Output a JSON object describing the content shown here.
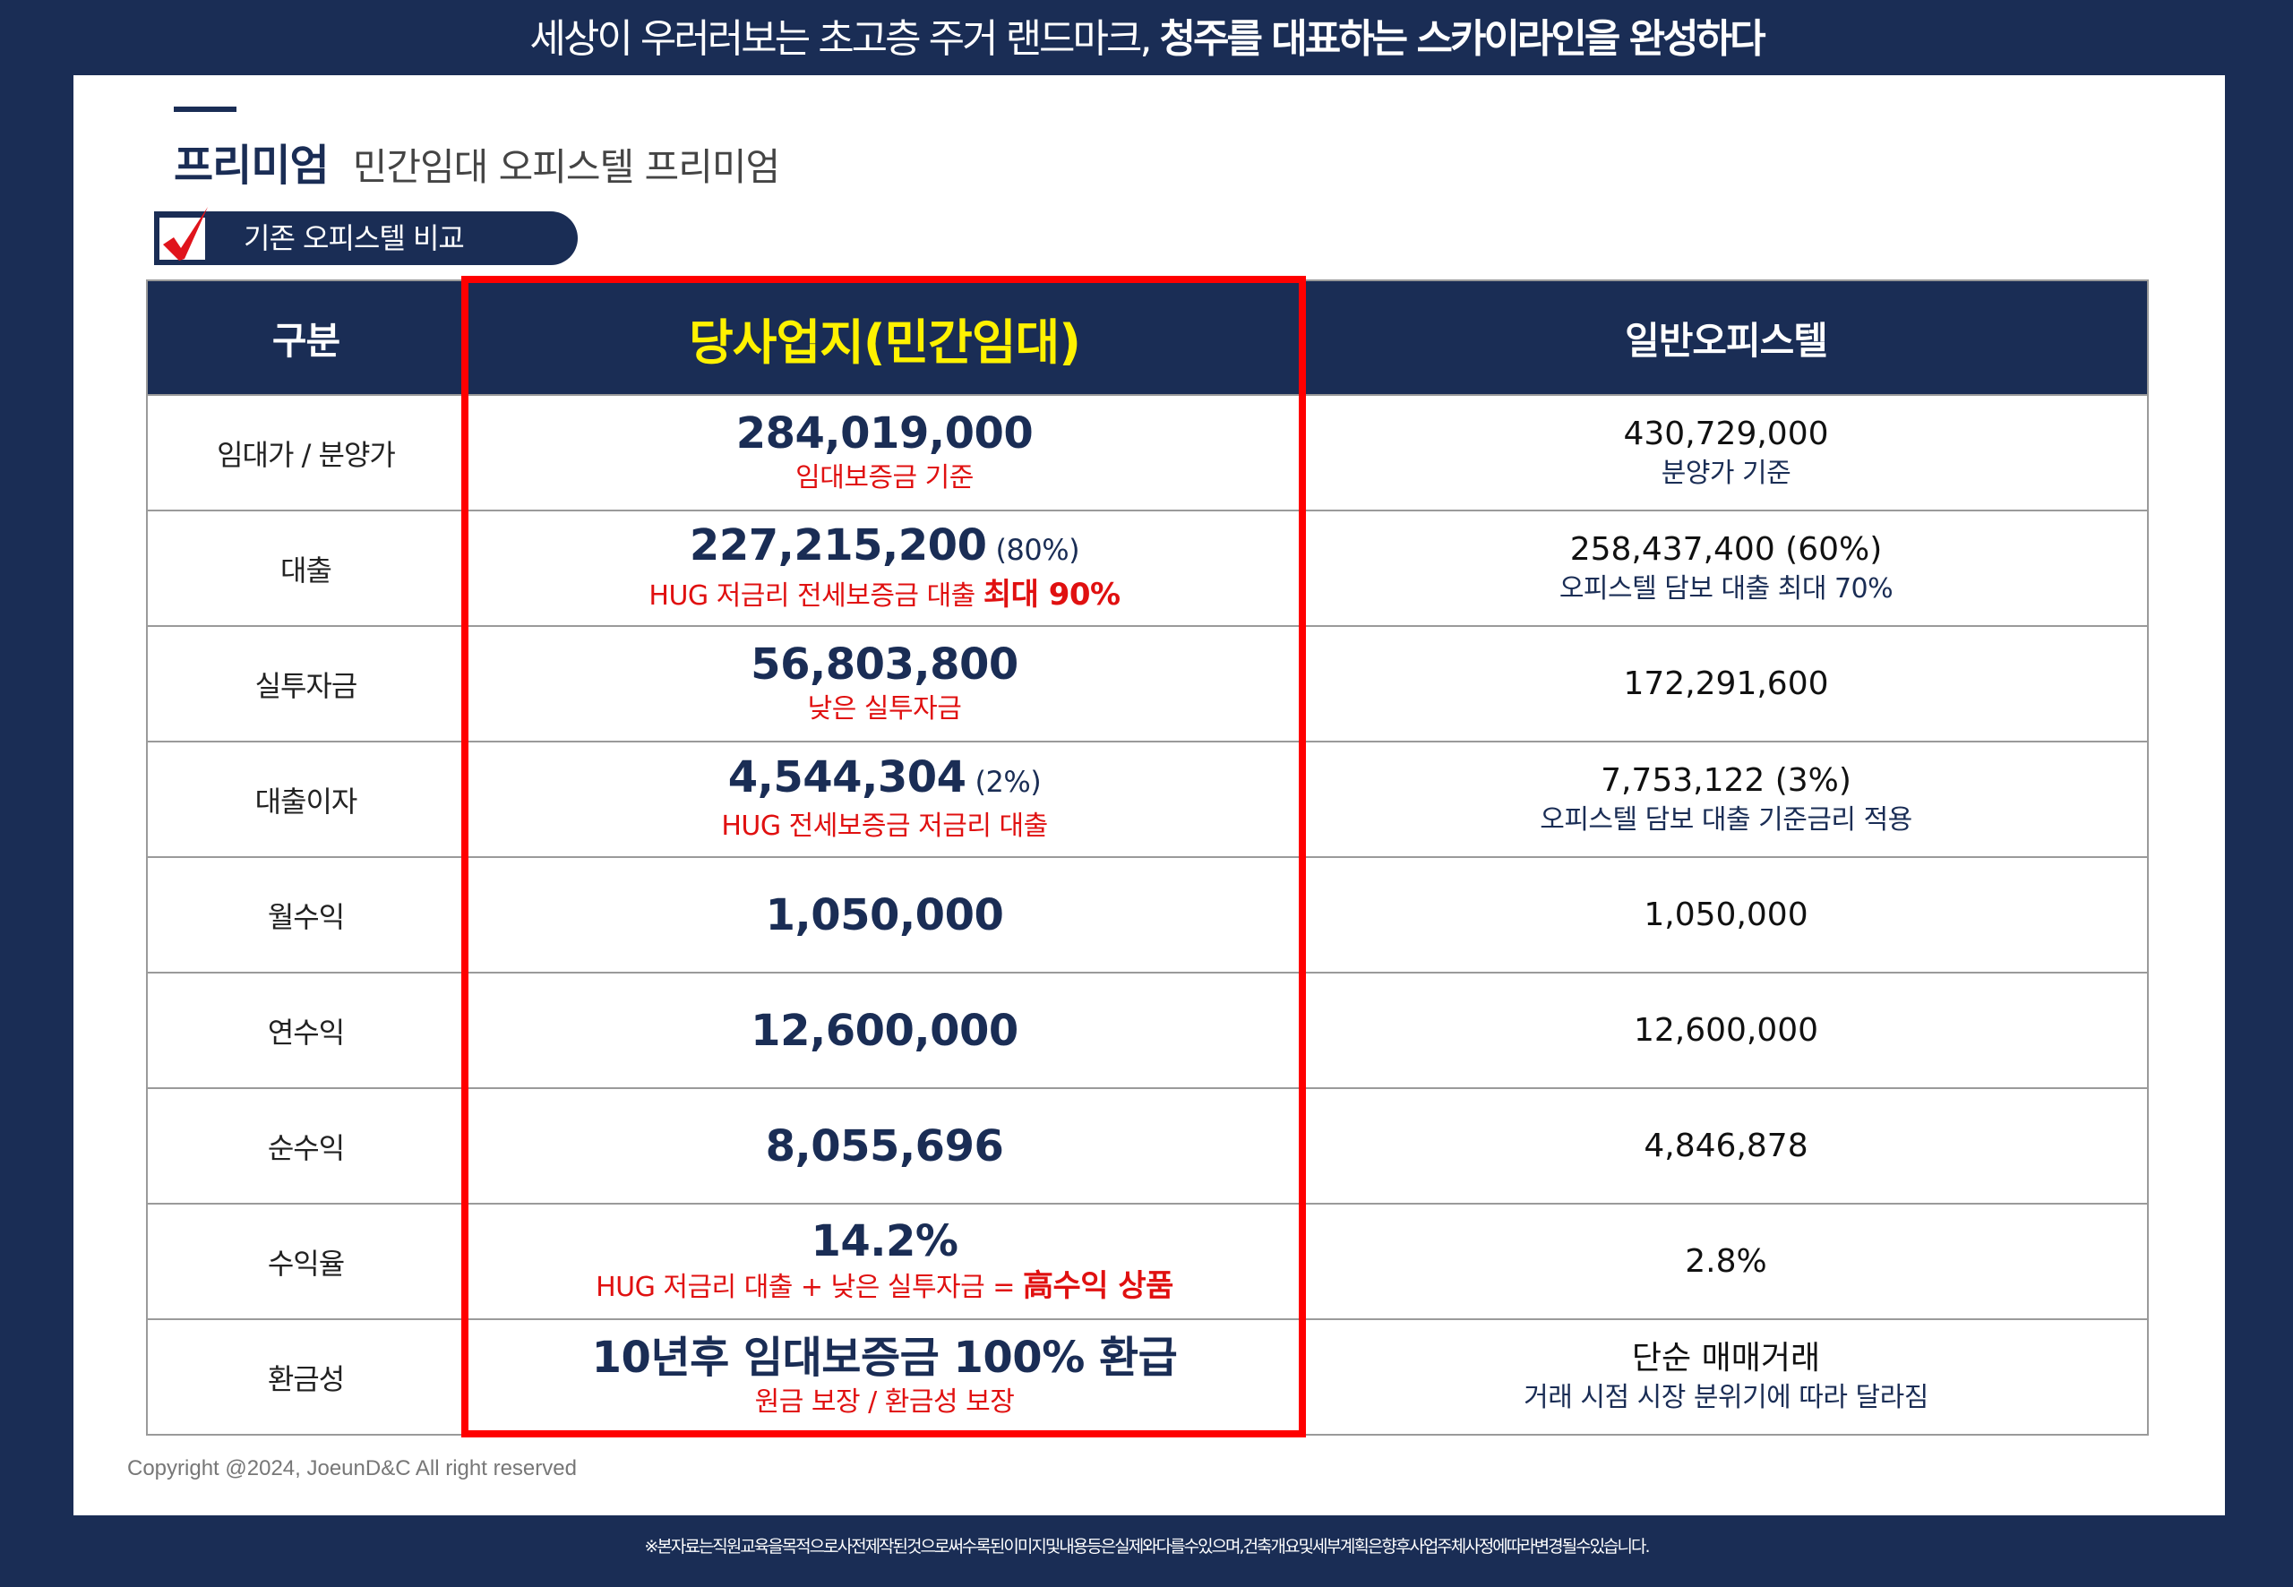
{
  "headline": {
    "regular": "세상이 우러러보는 초고층 주거 랜드마크,",
    "strong": "청주를 대표하는 스카이라인을 완성하다"
  },
  "section": {
    "title": "프리미엄",
    "subtitle": "민간임대 오피스텔 프리미엄"
  },
  "badge": {
    "icon": "checkbox-checked-icon",
    "label": "기존 오피스텔 비교"
  },
  "colors": {
    "navy": "#1a2d55",
    "highlight_yellow": "#fff200",
    "red": "#ff0000",
    "note_red": "#e01010"
  },
  "table": {
    "headers": [
      "구분",
      "당사업지(민간임대)",
      "일반오피스텔"
    ],
    "rows": [
      {
        "label": "임대가 / 분양가",
        "ours": {
          "value": "284,019,000",
          "pct": "",
          "note": "임대보증금 기준",
          "note_strong": ""
        },
        "general": {
          "value": "430,729,000",
          "note": "분양가 기준"
        }
      },
      {
        "label": "대출",
        "ours": {
          "value": "227,215,200",
          "pct": "(80%)",
          "note": "HUG 저금리 전세보증금 대출",
          "note_strong": "최대 90%"
        },
        "general": {
          "value": "258,437,400 (60%)",
          "note": "오피스텔 담보 대출 최대 70%"
        }
      },
      {
        "label": "실투자금",
        "ours": {
          "value": "56,803,800",
          "pct": "",
          "note": "낮은 실투자금",
          "note_strong": ""
        },
        "general": {
          "value": "172,291,600",
          "note": ""
        }
      },
      {
        "label": "대출이자",
        "ours": {
          "value": "4,544,304",
          "pct": "(2%)",
          "note": "HUG 전세보증금 저금리 대출",
          "note_strong": ""
        },
        "general": {
          "value": "7,753,122 (3%)",
          "note": "오피스텔 담보 대출 기준금리 적용"
        }
      },
      {
        "label": "월수익",
        "ours": {
          "value": "1,050,000",
          "pct": "",
          "note": "",
          "note_strong": ""
        },
        "general": {
          "value": "1,050,000",
          "note": ""
        }
      },
      {
        "label": "연수익",
        "ours": {
          "value": "12,600,000",
          "pct": "",
          "note": "",
          "note_strong": ""
        },
        "general": {
          "value": "12,600,000",
          "note": ""
        }
      },
      {
        "label": "순수익",
        "ours": {
          "value": "8,055,696",
          "pct": "",
          "note": "",
          "note_strong": ""
        },
        "general": {
          "value": "4,846,878",
          "note": ""
        }
      },
      {
        "label": "수익율",
        "ours": {
          "value": "14.2%",
          "pct": "",
          "note": "HUG 저금리 대출 + 낮은 실투자금 =",
          "note_strong": "高수익 상품"
        },
        "general": {
          "value": "2.8%",
          "note": ""
        }
      },
      {
        "label": "환금성",
        "ours": {
          "value": "10년후 임대보증금 100% 환급",
          "pct": "",
          "note": "원금 보장 / 환금성 보장",
          "note_strong": ""
        },
        "general": {
          "value": "단순 매매거래",
          "note": "거래 시점 시장 분위기에 따라 달라짐"
        }
      }
    ]
  },
  "footer": {
    "copyright": "Copyright @2024, JoeunD&C All right reserved",
    "disclaimer": "※본자료는직원교육을목적으로사전제작된것으로써수록된이미지및내용등은실제와다를수있으며,건축개요및세부계획은향후사업주체사정에따라변경될수있습니다."
  }
}
